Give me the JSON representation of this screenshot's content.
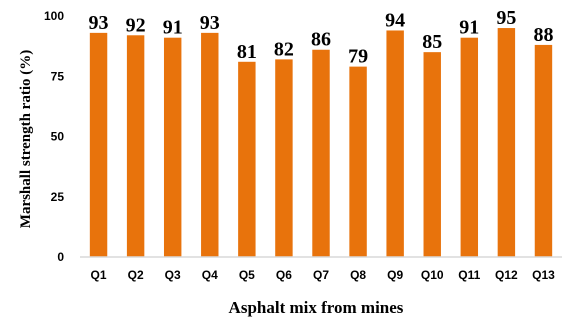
{
  "chart_data": {
    "type": "bar",
    "title": "",
    "xlabel": "Asphalt mix from mines",
    "ylabel": "Marshall strength ratio (%)",
    "categories": [
      "Q1",
      "Q2",
      "Q3",
      "Q4",
      "Q5",
      "Q6",
      "Q7",
      "Q8",
      "Q9",
      "Q10",
      "Q11",
      "Q12",
      "Q13"
    ],
    "values": [
      93,
      92,
      91,
      93,
      81,
      82,
      86,
      79,
      94,
      85,
      91,
      95,
      88
    ],
    "data_labels": [
      "93",
      "92",
      "91",
      "93",
      "81",
      "82",
      "86",
      "79",
      "94",
      "85",
      "91",
      "95",
      "88"
    ],
    "ylim": [
      0,
      100
    ],
    "yticks": [
      0,
      25,
      50,
      75,
      100
    ],
    "ytick_labels": [
      "0",
      "25",
      "50",
      "75",
      "100"
    ],
    "grid": false,
    "legend": "none",
    "bar_color": "#E8730C",
    "axis_color": "#D9D9D9"
  }
}
